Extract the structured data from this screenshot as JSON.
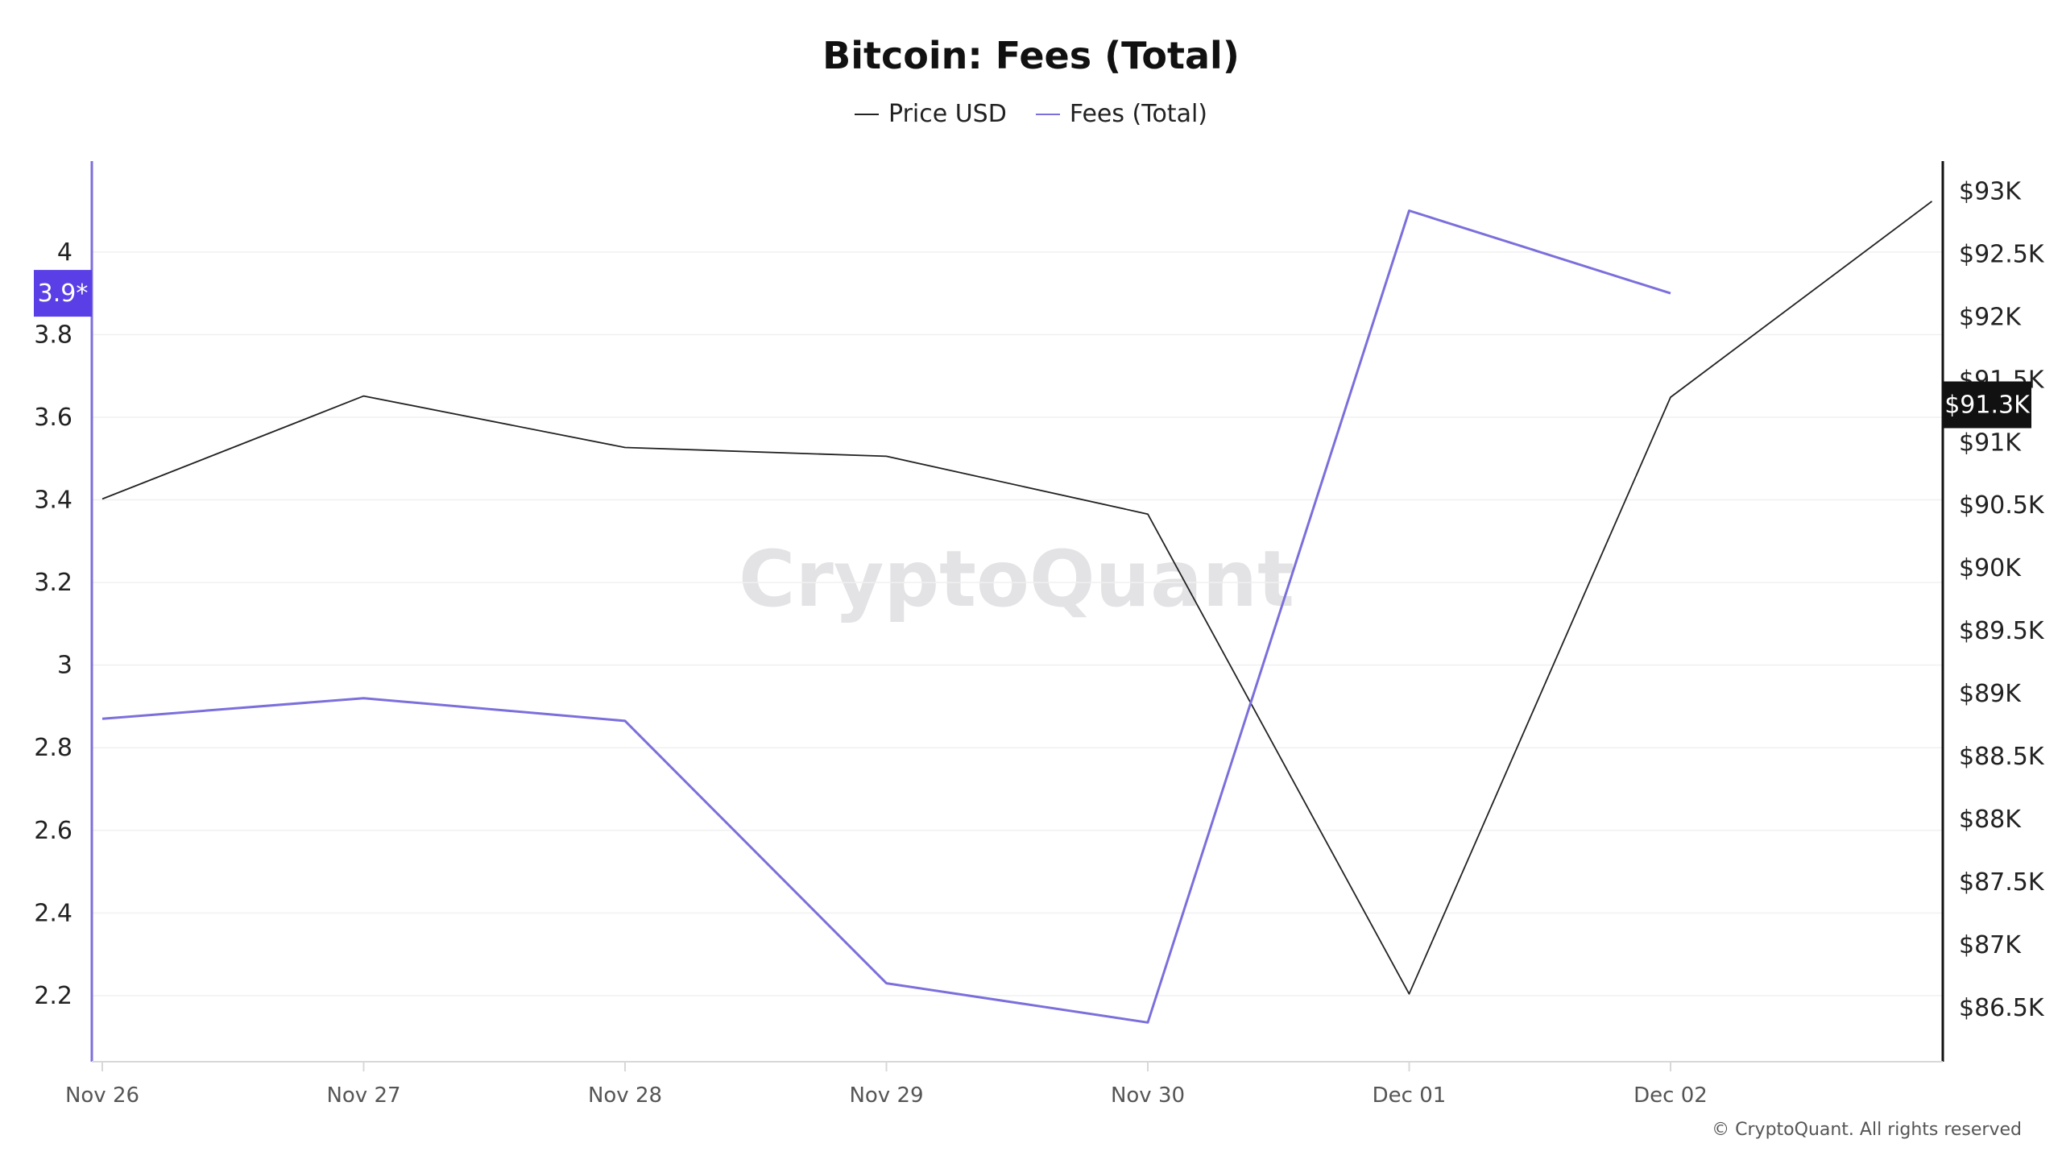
{
  "chart_data": {
    "type": "line",
    "title": "Bitcoin: Fees (Total)",
    "categories": [
      "Nov 26",
      "Nov 27",
      "Nov 28",
      "Nov 29",
      "Nov 30",
      "Dec 01",
      "Dec 02",
      ""
    ],
    "series": [
      {
        "name": "Price USD",
        "axis": "right",
        "color": "#222222",
        "values": [
          90550,
          91370,
          90960,
          90890,
          90430,
          86610,
          91360,
          92920
        ]
      },
      {
        "name": "Fees (Total)",
        "axis": "left",
        "color": "#7b6fdc",
        "values": [
          2.87,
          2.92,
          2.865,
          2.23,
          2.135,
          4.1,
          3.9,
          null
        ]
      }
    ],
    "left_axis": {
      "ticks": [
        "2.2",
        "2.4",
        "2.6",
        "2.8",
        "3",
        "3.2",
        "3.4",
        "3.6",
        "3.8",
        "4"
      ],
      "tick_values": [
        2.2,
        2.4,
        2.6,
        2.8,
        3.0,
        3.2,
        3.4,
        3.6,
        3.8,
        4.0
      ],
      "ylim": [
        2.04,
        4.22
      ],
      "marker_label": "3.9*",
      "marker_value": 3.9,
      "marker_color": "#5b3fe6",
      "axis_color": "#7b6fdc"
    },
    "right_axis": {
      "ticks": [
        "$86.5K",
        "$87K",
        "$87.5K",
        "$88K",
        "$88.5K",
        "$89K",
        "$89.5K",
        "$90K",
        "$90.5K",
        "$91K",
        "$91.5K",
        "$92K",
        "$92.5K",
        "$93K"
      ],
      "tick_values": [
        86500,
        87000,
        87500,
        88000,
        88500,
        89000,
        89500,
        90000,
        90500,
        91000,
        91500,
        92000,
        92500,
        93000
      ],
      "ylim": [
        86070,
        93240
      ],
      "marker_label": "$91.3K",
      "marker_value": 91300,
      "marker_color": "#111111"
    },
    "grid": true,
    "legend_position": "top-center"
  },
  "watermark": "CryptoQuant",
  "copyright": "© CryptoQuant. All rights reserved"
}
